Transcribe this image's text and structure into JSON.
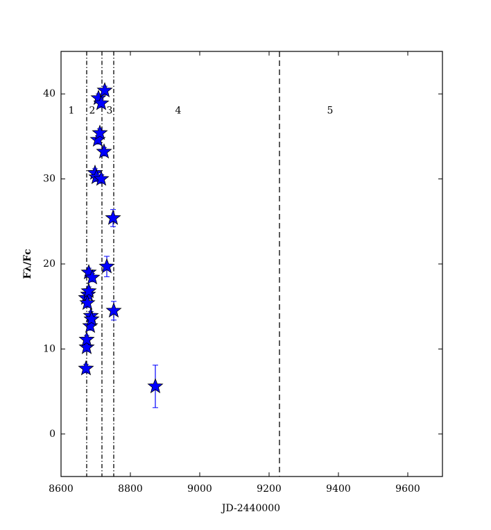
{
  "chart_data": {
    "type": "scatter",
    "x_label": "JD-2440000",
    "y_label": "Fλ/Fc",
    "xlim": [
      8600,
      9700
    ],
    "ylim": [
      -5,
      45
    ],
    "xticks": [
      8600,
      8800,
      9000,
      9200,
      9400,
      9600
    ],
    "yticks": [
      0,
      10,
      20,
      30,
      40
    ],
    "series": [
      {
        "color": "#0000ff",
        "x": [
          8672,
          8674,
          8674,
          8672,
          8678,
          8676,
          8680,
          8680,
          8684,
          8686,
          8688,
          8690,
          8698,
          8702,
          8706,
          8712,
          8708,
          8716,
          8726,
          8716,
          8724,
          8732,
          8750,
          8752,
          8872
        ],
        "values": [
          7.7,
          10.2,
          11.1,
          16,
          16.4,
          15.4,
          16.8,
          19,
          12.7,
          13.9,
          13.5,
          18.4,
          30.7,
          30.2,
          34.6,
          35.4,
          39.5,
          38.9,
          40.4,
          30,
          33.2,
          19.7,
          25.4,
          14.5,
          5.6
        ],
        "errors": [
          0.5,
          0.5,
          0.5,
          0.5,
          0.5,
          0.5,
          0.5,
          0.5,
          0.5,
          0.5,
          0.5,
          0.5,
          0.5,
          0.5,
          0.5,
          0.5,
          0.5,
          0.5,
          0.5,
          0.5,
          0.5,
          1.2,
          1,
          1.1,
          2.5
        ]
      }
    ],
    "vlines": [
      {
        "x": 8674,
        "style": "dashdot"
      },
      {
        "x": 8718,
        "style": "dashdot"
      },
      {
        "x": 8752,
        "style": "dashdot"
      },
      {
        "x": 9230,
        "style": "dashed"
      }
    ],
    "annotations": [
      {
        "text": "1",
        "x": 8630,
        "y": 38
      },
      {
        "text": "2",
        "x": 8690,
        "y": 38
      },
      {
        "text": "3",
        "x": 8740,
        "y": 38
      },
      {
        "text": "4",
        "x": 8938,
        "y": 38
      },
      {
        "text": "5",
        "x": 9376,
        "y": 38
      }
    ]
  }
}
